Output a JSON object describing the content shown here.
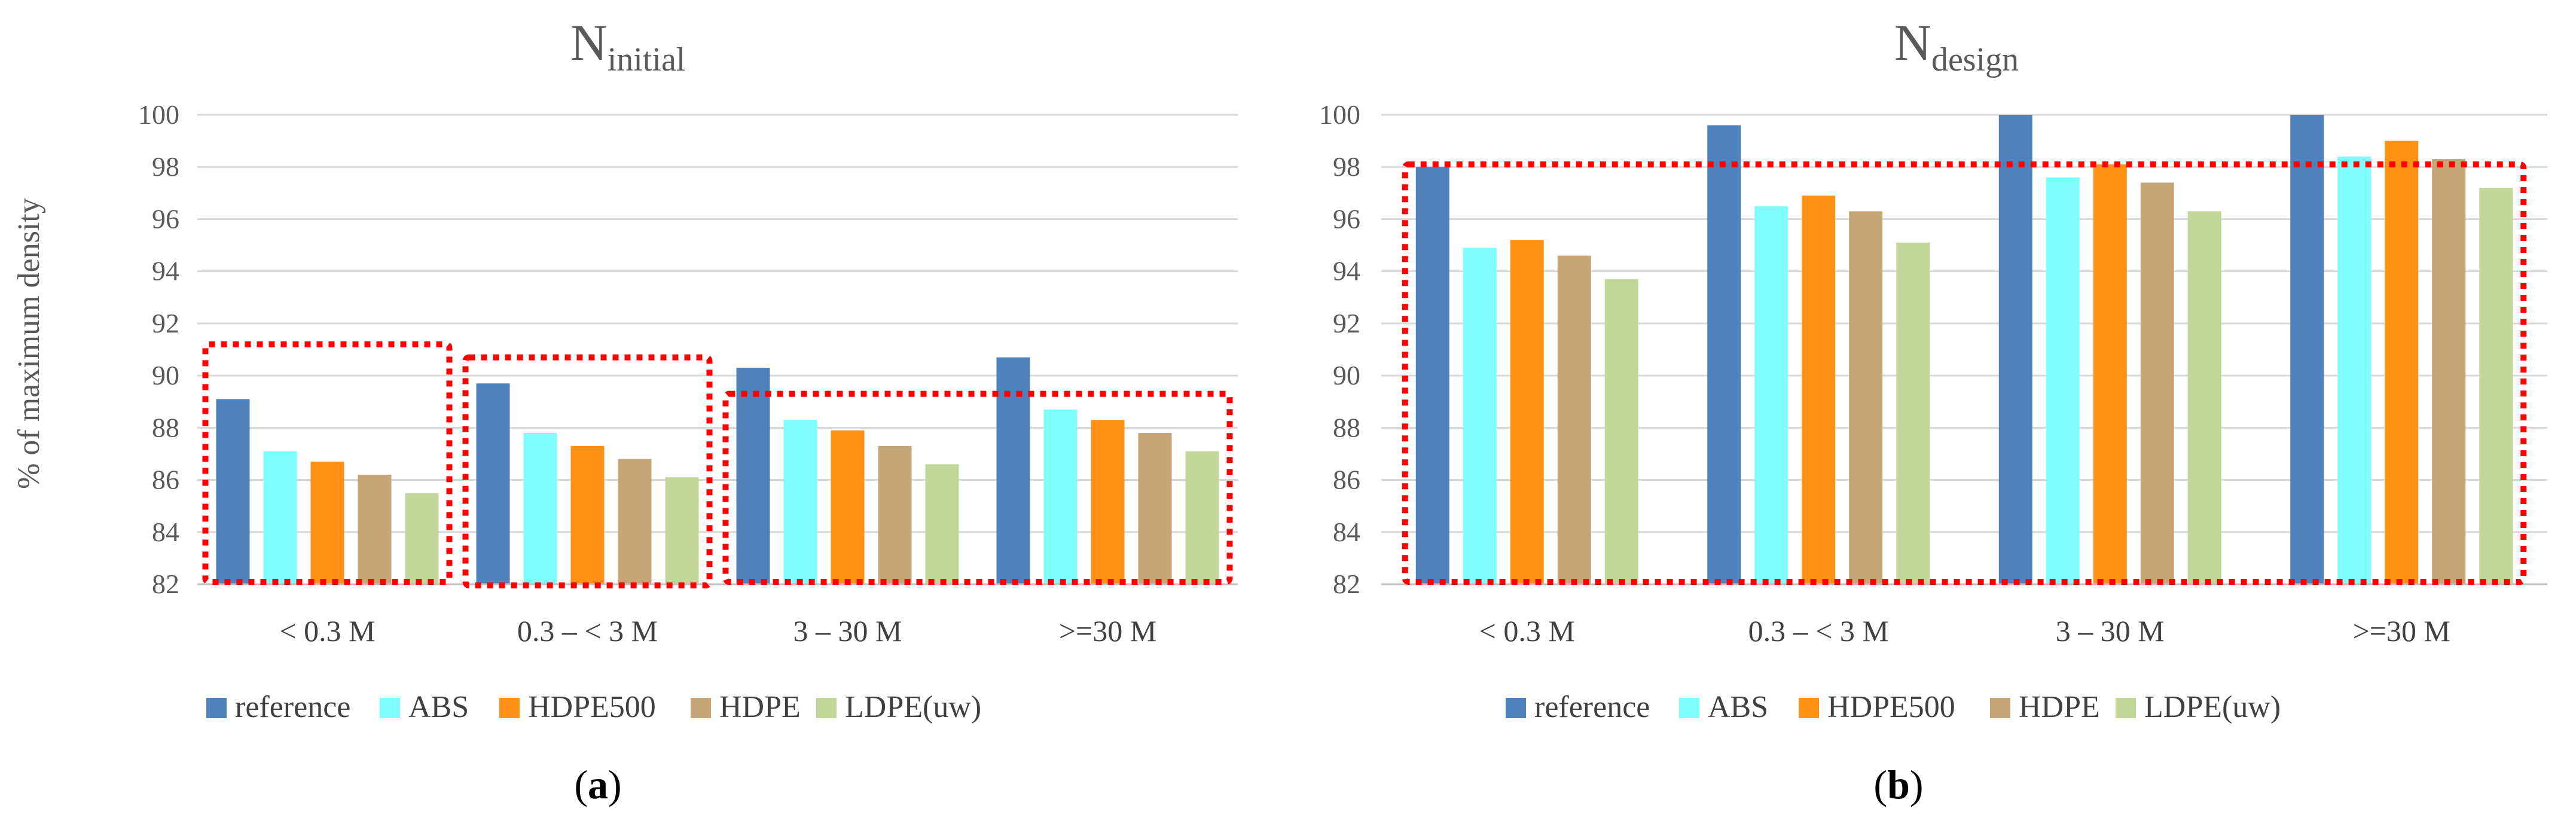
{
  "colors": {
    "reference": "#4f81bd",
    "ABS": "#7fffff",
    "HDPE500": "#ff9214",
    "HDPE": "#c6a577",
    "LDPE(uw)": "#c4d79b",
    "highlight": "#ff0000"
  },
  "chart_data": [
    {
      "type": "bar",
      "panel_label": "a",
      "title_main": "N",
      "title_sub": "initial",
      "ylabel": "% of maximum density",
      "xlabel": "",
      "ylim": [
        82,
        100
      ],
      "yticks": [
        82,
        84,
        86,
        88,
        90,
        92,
        94,
        96,
        98,
        100
      ],
      "grid": true,
      "legend": "bottom",
      "categories": [
        "< 0.3 M",
        "0.3 – < 3 M",
        "3 – 30 M",
        ">=30 M"
      ],
      "series": [
        {
          "name": "reference",
          "values": [
            89.1,
            89.7,
            90.3,
            90.7
          ]
        },
        {
          "name": "ABS",
          "values": [
            87.1,
            87.8,
            88.3,
            88.7
          ]
        },
        {
          "name": "HDPE500",
          "values": [
            86.7,
            87.3,
            87.9,
            88.3
          ]
        },
        {
          "name": "HDPE",
          "values": [
            86.2,
            86.8,
            87.3,
            87.8
          ]
        },
        {
          "name": "LDPE(uw)",
          "values": [
            85.5,
            86.1,
            86.6,
            87.1
          ]
        }
      ],
      "highlight_boxes": [
        {
          "categories": [
            0
          ],
          "top_value": 91.2
        },
        {
          "categories": [
            1
          ],
          "top_value": 90.7
        },
        {
          "categories": [
            2,
            3
          ],
          "top_value": 89.3
        }
      ]
    },
    {
      "type": "bar",
      "panel_label": "b",
      "title_main": "N",
      "title_sub": "design",
      "ylabel": "",
      "xlabel": "",
      "ylim": [
        82,
        100
      ],
      "yticks": [
        82,
        84,
        86,
        88,
        90,
        92,
        94,
        96,
        98,
        100
      ],
      "grid": true,
      "legend": "bottom",
      "categories": [
        "< 0.3 M",
        "0.3 – < 3 M",
        "3 – 30 M",
        ">=30 M"
      ],
      "series": [
        {
          "name": "reference",
          "values": [
            98.0,
            99.6,
            100,
            100
          ]
        },
        {
          "name": "ABS",
          "values": [
            94.9,
            96.5,
            97.6,
            98.4
          ]
        },
        {
          "name": "HDPE500",
          "values": [
            95.2,
            96.9,
            98.1,
            99.0
          ]
        },
        {
          "name": "HDPE",
          "values": [
            94.6,
            96.3,
            97.4,
            98.3
          ]
        },
        {
          "name": "LDPE(uw)",
          "values": [
            93.7,
            95.1,
            96.3,
            97.2
          ]
        }
      ],
      "highlight_boxes": [
        {
          "categories": [
            0,
            1,
            2,
            3
          ],
          "top_value": 98.1
        }
      ]
    }
  ]
}
